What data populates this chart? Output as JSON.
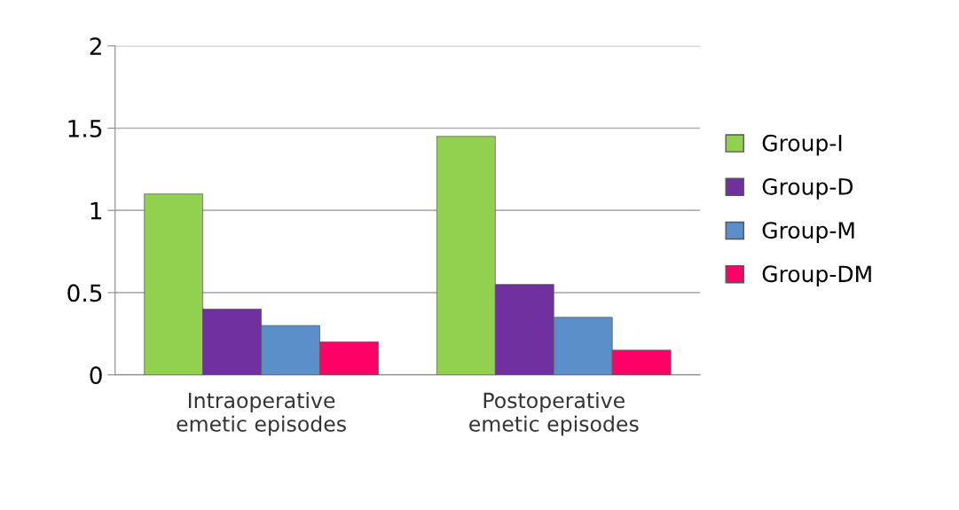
{
  "chart_data": {
    "type": "bar",
    "categories": [
      "Intraoperative\nemetic episodes",
      "Postoperative\nemetic episodes"
    ],
    "series": [
      {
        "name": "Group-I",
        "color": "#92d050",
        "values": [
          1.1,
          1.45
        ]
      },
      {
        "name": "Group-D",
        "color": "#7030a0",
        "values": [
          0.4,
          0.55
        ]
      },
      {
        "name": "Group-M",
        "color": "#5b8fc9",
        "values": [
          0.3,
          0.35
        ]
      },
      {
        "name": "Group-DM",
        "color": "#ff0066",
        "values": [
          0.2,
          0.15
        ]
      }
    ],
    "ylim": [
      0,
      2
    ],
    "yticks": [
      0,
      0.5,
      1,
      1.5,
      2
    ],
    "grid": "y",
    "legend": "right"
  }
}
